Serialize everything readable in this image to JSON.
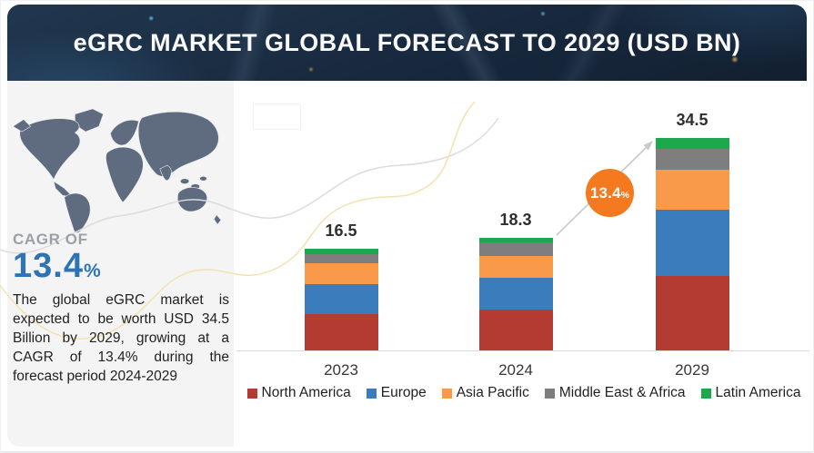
{
  "header": {
    "title": "eGRC MARKET GLOBAL FORECAST TO 2029 (USD BN)"
  },
  "left_panel": {
    "cagr_label": "CAGR OF",
    "cagr_value": "13.4",
    "cagr_unit": "%",
    "summary": "The global eGRC market is expected to be worth USD 34.5 Billion by 2029, growing at a CAGR of 13.4% during the forecast period 2024-2029"
  },
  "chart": {
    "bubble_value": "13.4",
    "bubble_unit": "%"
  },
  "chart_data": {
    "type": "bar",
    "stacked": true,
    "title": "eGRC Market Global Forecast to 2029 (USD BN)",
    "unit": "USD BN",
    "categories": [
      "2023",
      "2024",
      "2029"
    ],
    "totals": [
      16.5,
      18.3,
      34.5
    ],
    "series": [
      {
        "name": "North America",
        "color": "#B43B31",
        "values": [
          5.9,
          6.6,
          12.1
        ]
      },
      {
        "name": "Europe",
        "color": "#3A7CBC",
        "values": [
          4.8,
          5.2,
          10.7
        ]
      },
      {
        "name": "Asia Pacific",
        "color": "#F9994A",
        "values": [
          3.4,
          3.5,
          6.6
        ]
      },
      {
        "name": "Middle East & Africa",
        "color": "#7E7E7E",
        "values": [
          1.6,
          2.2,
          3.4
        ]
      },
      {
        "name": "Latin America",
        "color": "#1CA94C",
        "values": [
          0.8,
          0.8,
          1.7
        ]
      }
    ],
    "annotation": {
      "text": "13.4%",
      "type": "growth-bubble",
      "between": [
        "2024",
        "2029"
      ]
    },
    "legend_position": "bottom",
    "grid": false,
    "ylim": [
      0,
      36
    ]
  },
  "colors": {
    "header_bg": "#18293E",
    "panel_bg": "#F4F4F4",
    "cagr_blue": "#2E74B5",
    "bubble_orange": "#F4791F",
    "map_gray": "#5F6C80",
    "curve_yellow": "#F3E2B0",
    "curve_gray": "#DCDCDC",
    "arrow_gray": "#C9C9C9"
  }
}
